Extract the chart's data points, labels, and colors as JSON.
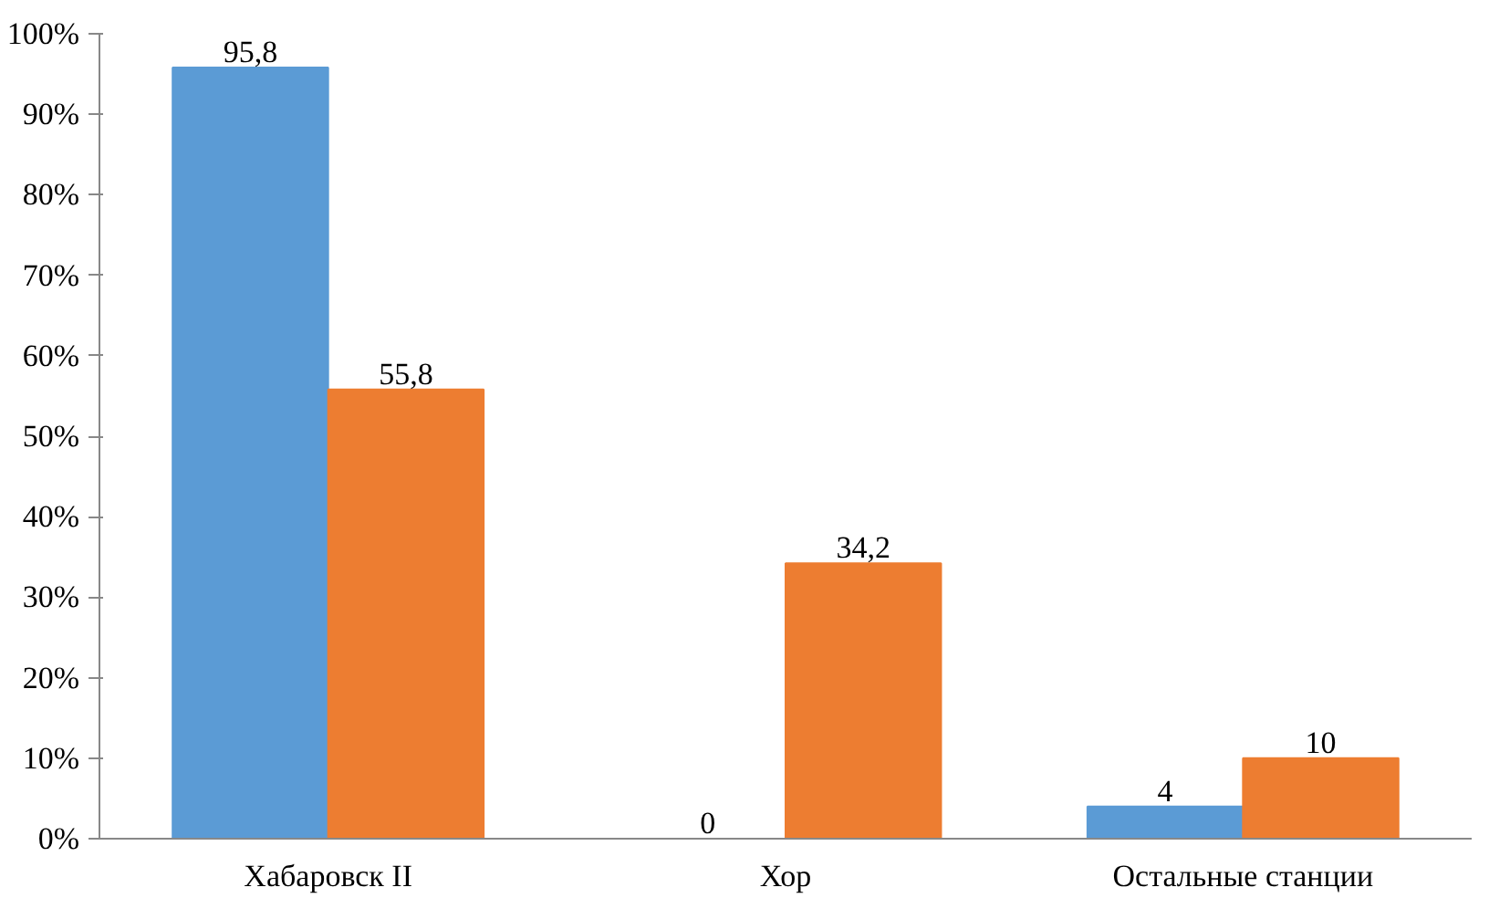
{
  "chart_data": {
    "type": "bar",
    "categories": [
      "Хабаровск II",
      "Хор",
      "Остальные станции"
    ],
    "series": [
      {
        "color": "#5b9bd5",
        "values": [
          95.8,
          0,
          4
        ],
        "value_labels": [
          "95,8",
          "0",
          "4"
        ]
      },
      {
        "color": "#ed7d31",
        "values": [
          55.8,
          34.2,
          10
        ],
        "value_labels": [
          "55,8",
          "34,2",
          "10"
        ]
      }
    ],
    "ylim": [
      0,
      100
    ],
    "yticks": [
      {
        "value": 0,
        "label": "0%"
      },
      {
        "value": 10,
        "label": "10%"
      },
      {
        "value": 20,
        "label": "20%"
      },
      {
        "value": 30,
        "label": "30%"
      },
      {
        "value": 40,
        "label": "40%"
      },
      {
        "value": 50,
        "label": "50%"
      },
      {
        "value": 60,
        "label": "60%"
      },
      {
        "value": 70,
        "label": "70%"
      },
      {
        "value": 80,
        "label": "80%"
      },
      {
        "value": 90,
        "label": "90%"
      },
      {
        "value": 100,
        "label": "100%"
      }
    ],
    "grid": false
  }
}
